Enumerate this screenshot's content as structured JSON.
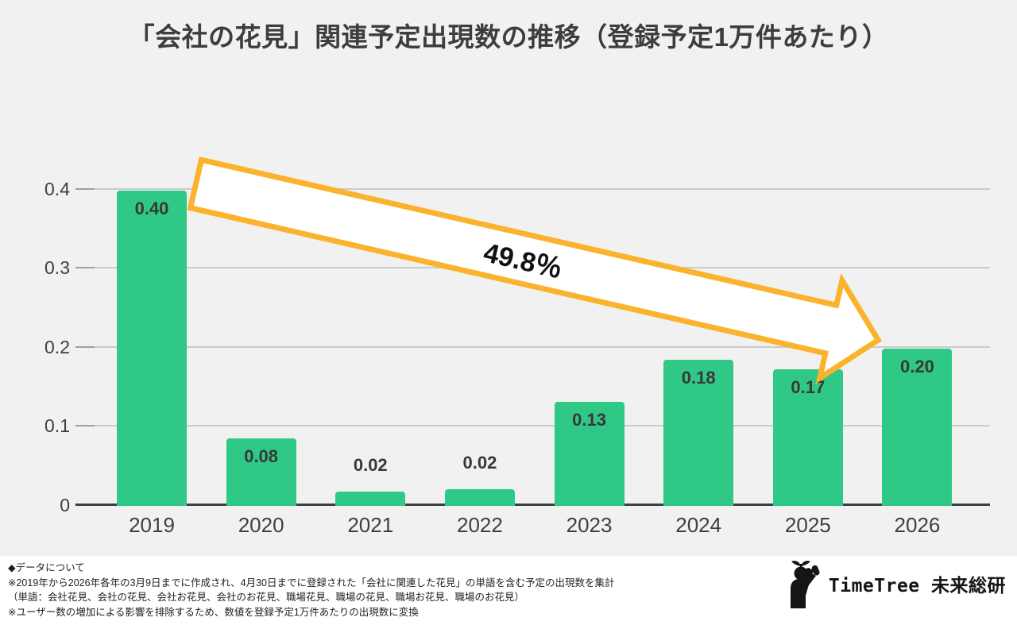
{
  "title": "「会社の花見」関連予定出現数の推移（登録予定1万件あたり）",
  "chart_data": {
    "type": "bar",
    "title": "「会社の花見」関連予定出現数の推移（登録予定1万件あたり）",
    "categories": [
      "2019",
      "2020",
      "2021",
      "2022",
      "2023",
      "2024",
      "2025",
      "2026"
    ],
    "values": [
      0.4,
      0.08,
      0.02,
      0.02,
      0.13,
      0.18,
      0.17,
      0.2
    ],
    "render_values": [
      0.397,
      0.084,
      0.017,
      0.02,
      0.13,
      0.183,
      0.171,
      0.197
    ],
    "value_labels": [
      "0.40",
      "0.08",
      "0.02",
      "0.02",
      "0.13",
      "0.18",
      "0.17",
      "0.20"
    ],
    "xlabel": "",
    "ylabel": "",
    "ylim": [
      0,
      0.45
    ],
    "yticks": [
      0,
      0.1,
      0.2,
      0.3,
      0.4
    ],
    "ytick_labels": [
      "0",
      "0.1",
      "0.2",
      "0.3",
      "0.4"
    ],
    "grid": true,
    "legend": "none",
    "bar_color": "#30c886",
    "annotations": [
      {
        "text": "49.8％",
        "style": "big-white-arrow-from-2019-to-2025"
      }
    ]
  },
  "arrow": {
    "label": "49.8％",
    "fill": "#ffffff",
    "stroke": "#fbb32e"
  },
  "colors": {
    "background": "#f1f1f1",
    "footer_background": "#ffffff",
    "bar": "#30c886",
    "gridline": "#cbcbcb",
    "axis": "#3f3f3f",
    "text": "#3d3d3d",
    "arrow_stroke": "#fbb32e",
    "logo": "#151515"
  },
  "footer": {
    "notes": [
      "◆データについて",
      "※2019年から2026年各年の3月9日までに作成され、4月30日までに登録された「会社に関連した花見」の単語を含む予定の出現数を集計",
      "（単語：会社花見、会社の花見、会社お花見、会社のお花見、職場花見、職場の花見、職場お花見、職場のお花見）",
      "※ユーザー数の増加による影響を排除するため、数値を登録予定1万件あたりの出現数に変換"
    ],
    "logo_text": "TimeTree 未来総研"
  }
}
